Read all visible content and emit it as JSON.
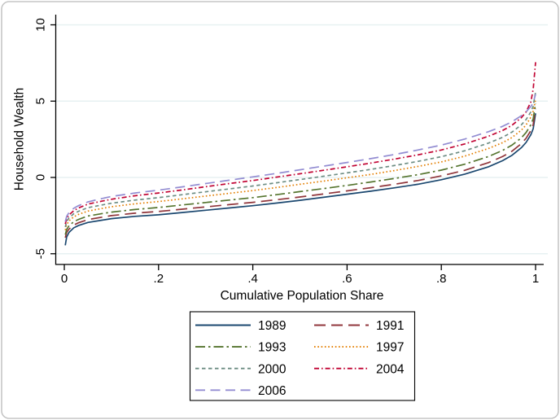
{
  "window": {
    "background": "#ffffff",
    "border_color": "#c6c6c6"
  },
  "chart_data": {
    "type": "line",
    "title": "",
    "xlabel": "Cumulative Population Share",
    "ylabel": "Household Wealth",
    "xlim": [
      0,
      1
    ],
    "ylim": [
      -5,
      10
    ],
    "x_ticks": [
      {
        "value": 0,
        "label": "0"
      },
      {
        "value": 0.2,
        "label": ".2"
      },
      {
        "value": 0.4,
        "label": ".4"
      },
      {
        "value": 0.6,
        "label": ".6"
      },
      {
        "value": 0.8,
        "label": ".8"
      },
      {
        "value": 1,
        "label": "1"
      }
    ],
    "y_ticks": [
      {
        "value": -5,
        "label": "-5"
      },
      {
        "value": 0,
        "label": "0"
      },
      {
        "value": 5,
        "label": "5"
      },
      {
        "value": 10,
        "label": "10"
      }
    ],
    "grid": true,
    "grid_color": "#e7f1f2",
    "axis_color": "#000000",
    "text_color": "#000000",
    "legend_position": "bottom-center",
    "legend_columns": 2,
    "legend_border_color": "#000000",
    "legend_background": "#ffffff",
    "x": [
      0.002,
      0.005,
      0.01,
      0.02,
      0.03,
      0.05,
      0.08,
      0.1,
      0.15,
      0.2,
      0.25,
      0.3,
      0.35,
      0.4,
      0.45,
      0.5,
      0.55,
      0.6,
      0.65,
      0.7,
      0.75,
      0.8,
      0.85,
      0.9,
      0.93,
      0.95,
      0.97,
      0.98,
      0.99,
      0.995,
      1.0
    ],
    "series": [
      {
        "name": "1989",
        "color": "#1a476f",
        "pattern": "solid",
        "values": [
          -4.45,
          -3.9,
          -3.6,
          -3.3,
          -3.15,
          -2.95,
          -2.8,
          -2.7,
          -2.55,
          -2.45,
          -2.3,
          -2.15,
          -2.0,
          -1.85,
          -1.68,
          -1.5,
          -1.3,
          -1.1,
          -0.9,
          -0.68,
          -0.45,
          -0.15,
          0.22,
          0.7,
          1.1,
          1.45,
          1.95,
          2.3,
          2.8,
          3.2,
          4.2
        ]
      },
      {
        "name": "1991",
        "color": "#90353b",
        "pattern": "longdash",
        "values": [
          -3.95,
          -3.6,
          -3.38,
          -3.12,
          -2.97,
          -2.76,
          -2.6,
          -2.5,
          -2.34,
          -2.23,
          -2.08,
          -1.93,
          -1.78,
          -1.63,
          -1.46,
          -1.28,
          -1.08,
          -0.88,
          -0.67,
          -0.45,
          -0.2,
          0.1,
          0.47,
          0.97,
          1.37,
          1.72,
          2.22,
          2.57,
          3.07,
          3.47,
          4.5
        ]
      },
      {
        "name": "1993",
        "color": "#55752f",
        "pattern": "longdash_dot",
        "values": [
          -3.75,
          -3.4,
          -3.17,
          -2.9,
          -2.75,
          -2.53,
          -2.37,
          -2.27,
          -2.1,
          -1.97,
          -1.8,
          -1.64,
          -1.48,
          -1.32,
          -1.13,
          -0.93,
          -0.73,
          -0.52,
          -0.3,
          -0.07,
          0.18,
          0.48,
          0.87,
          1.37,
          1.77,
          2.12,
          2.6,
          2.95,
          3.45,
          3.85,
          4.85
        ]
      },
      {
        "name": "1997",
        "color": "#e37e00",
        "pattern": "dot",
        "values": [
          -3.45,
          -3.1,
          -2.85,
          -2.58,
          -2.42,
          -2.2,
          -2.03,
          -1.92,
          -1.73,
          -1.58,
          -1.4,
          -1.22,
          -1.04,
          -0.86,
          -0.66,
          -0.45,
          -0.24,
          -0.02,
          0.2,
          0.45,
          0.72,
          1.02,
          1.4,
          1.9,
          2.28,
          2.62,
          3.1,
          3.45,
          3.95,
          4.35,
          5.1
        ]
      },
      {
        "name": "2000",
        "color": "#6e8e84",
        "pattern": "shortdash",
        "values": [
          -3.25,
          -2.9,
          -2.65,
          -2.38,
          -2.22,
          -1.98,
          -1.8,
          -1.69,
          -1.48,
          -1.32,
          -1.13,
          -0.94,
          -0.75,
          -0.56,
          -0.35,
          -0.14,
          0.08,
          0.3,
          0.53,
          0.78,
          1.05,
          1.36,
          1.75,
          2.25,
          2.63,
          2.97,
          3.45,
          3.8,
          4.3,
          4.68,
          5.6
        ]
      },
      {
        "name": "2004",
        "color": "#c10534",
        "pattern": "shortdash_dot",
        "values": [
          -3.05,
          -2.7,
          -2.46,
          -2.18,
          -2.0,
          -1.75,
          -1.55,
          -1.43,
          -1.2,
          -1.02,
          -0.82,
          -0.61,
          -0.4,
          -0.2,
          0.02,
          0.24,
          0.47,
          0.7,
          0.94,
          1.2,
          1.48,
          1.8,
          2.2,
          2.7,
          3.08,
          3.42,
          3.92,
          4.3,
          4.95,
          5.8,
          7.55
        ]
      },
      {
        "name": "2006",
        "color": "#938dd2",
        "pattern": "mediumdash",
        "values": [
          -2.9,
          -2.55,
          -2.3,
          -2.02,
          -1.85,
          -1.6,
          -1.38,
          -1.25,
          -1.02,
          -0.83,
          -0.62,
          -0.4,
          -0.18,
          0.04,
          0.26,
          0.5,
          0.74,
          0.98,
          1.23,
          1.5,
          1.8,
          2.12,
          2.52,
          3.0,
          3.35,
          3.65,
          4.05,
          4.3,
          4.65,
          4.9,
          5.45
        ]
      }
    ]
  }
}
